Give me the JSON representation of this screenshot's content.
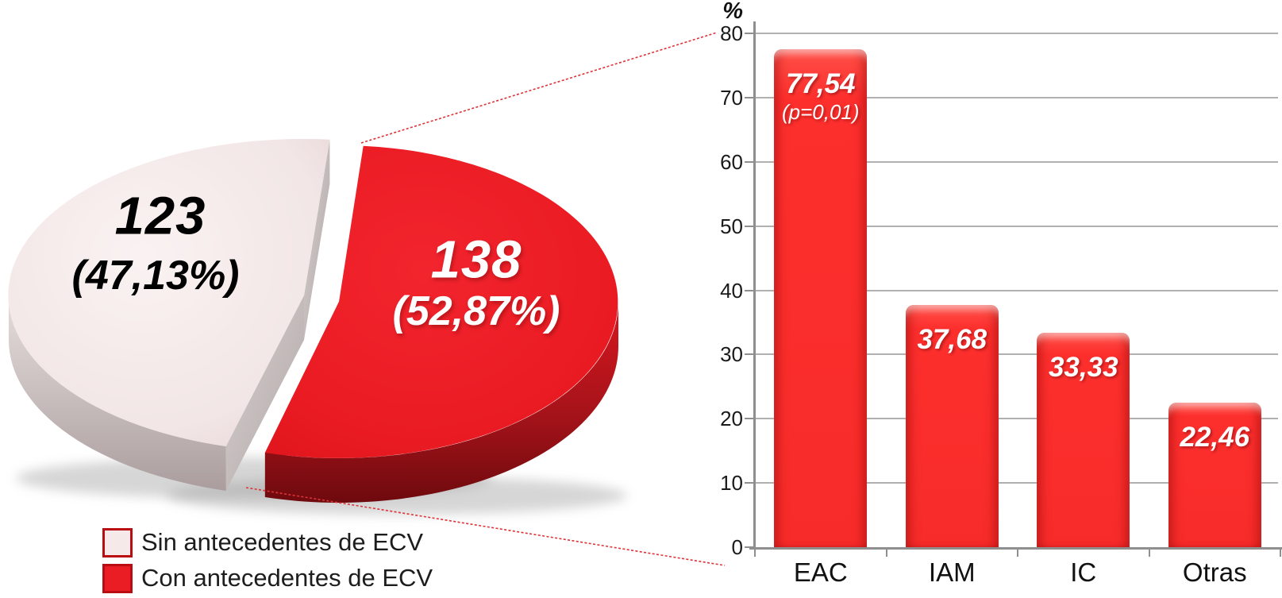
{
  "figure": {
    "background": "#ffffff",
    "connector_color": "#dd3237"
  },
  "chart_data": [
    {
      "type": "pie",
      "style": "3d-exploded",
      "title": "",
      "slices": [
        {
          "name": "Sin antecedentes de ECV",
          "value": 123,
          "percent": 47.13,
          "value_label": "123",
          "percent_label": "(47,13%)",
          "color": "#f5e9e9",
          "label_color": "#000000"
        },
        {
          "name": "Con antecedentes de ECV",
          "value": 138,
          "percent": 52.87,
          "value_label": "138",
          "percent_label": "(52,87%)",
          "color": "#ea1c24",
          "label_color": "#ffffff"
        }
      ],
      "legend_position": "bottom-left"
    },
    {
      "type": "bar",
      "categories": [
        "EAC",
        "IAM",
        "IC",
        "Otras"
      ],
      "values": [
        77.54,
        37.68,
        33.33,
        22.46
      ],
      "value_labels": [
        "77,54",
        "37,68",
        "33,33",
        "22,46"
      ],
      "annotations": [
        {
          "category": "EAC",
          "text": "(p=0,01)"
        }
      ],
      "title": "",
      "xlabel": "",
      "ylabel": "%",
      "ylim": [
        0,
        80
      ],
      "ytick_step": 10,
      "ytick_labels": [
        "0",
        "10",
        "20",
        "30",
        "40",
        "50",
        "60",
        "70",
        "80"
      ],
      "grid": true,
      "legend_position": "none",
      "bar_color": "#fd322f"
    }
  ]
}
